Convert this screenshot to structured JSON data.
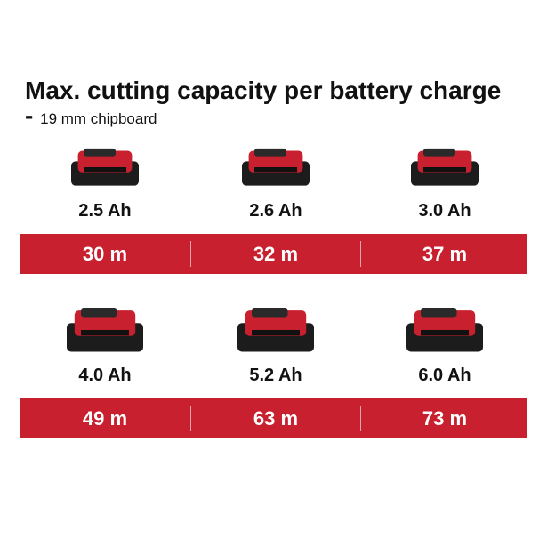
{
  "header": {
    "title": "Max. cutting capacity per battery charge -",
    "subtitle": "19 mm chipboard"
  },
  "rows": [
    {
      "items": [
        {
          "capacity": "2.5 Ah",
          "cutting": "30 m"
        },
        {
          "capacity": "2.6 Ah",
          "cutting": "32 m"
        },
        {
          "capacity": "3.0 Ah",
          "cutting": "37 m"
        }
      ]
    },
    {
      "items": [
        {
          "capacity": "4.0 Ah",
          "cutting": "49 m"
        },
        {
          "capacity": "5.2 Ah",
          "cutting": "63 m"
        },
        {
          "capacity": "6.0 Ah",
          "cutting": "73 m"
        }
      ]
    }
  ]
}
